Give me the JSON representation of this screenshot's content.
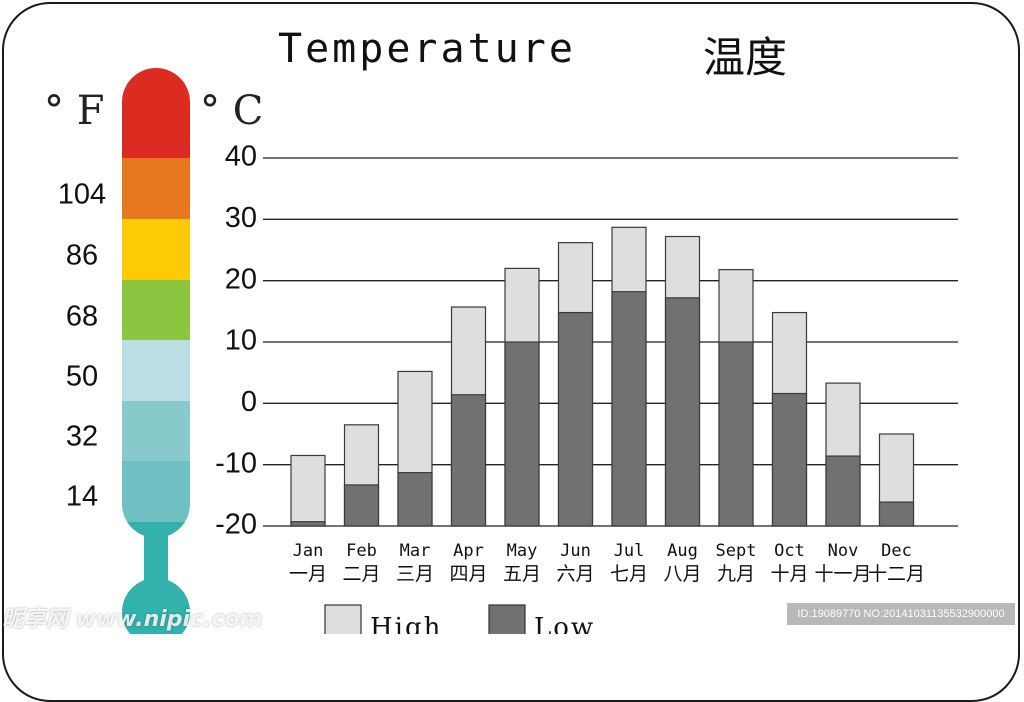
{
  "title": "Temperature",
  "title_zh": "温度",
  "units": {
    "fahrenheit": "° F",
    "celsius": "° C"
  },
  "thermometer": {
    "fahrenheit_ticks": [
      "104",
      "86",
      "68",
      "50",
      "32",
      "14"
    ],
    "band_colors": [
      "#dc2b20",
      "#e8781f",
      "#fccb05",
      "#8cc53f",
      "#b9dee3",
      "#88cacc",
      "#6ec0c2",
      "#33b1ad"
    ]
  },
  "chart_data": {
    "type": "bar",
    "categories": [
      "Jan",
      "Feb",
      "Mar",
      "Apr",
      "May",
      "Jun",
      "Jul",
      "Aug",
      "Sept",
      "Oct",
      "Nov",
      "Dec"
    ],
    "categories_zh": [
      "一月",
      "二月",
      "三月",
      "四月",
      "五月",
      "六月",
      "七月",
      "八月",
      "九月",
      "十月",
      "十一月",
      "十二月"
    ],
    "ylim": [
      -20,
      40
    ],
    "yticks": [
      "40",
      "30",
      "20",
      "10",
      "0",
      "-10",
      "-20"
    ],
    "series": [
      {
        "name": "High",
        "color": "#dedede",
        "values": [
          -8.5,
          -3.5,
          5.2,
          15.7,
          22,
          26.2,
          28.7,
          27.2,
          21.8,
          14.8,
          3.3,
          -5
        ]
      },
      {
        "name": "Low",
        "color": "#717171",
        "values": [
          -19.3,
          -13.3,
          -11.3,
          1.4,
          10,
          14.8,
          18.2,
          17.2,
          10,
          1.6,
          -8.6,
          -16.1
        ]
      }
    ],
    "legend": {
      "position": "bottom",
      "labels": [
        "High",
        "Low"
      ]
    },
    "grid": true
  },
  "watermark": {
    "left": "昵享网 www.nipic.com",
    "right": "ID:19089770 NO:20141031135532900000"
  }
}
